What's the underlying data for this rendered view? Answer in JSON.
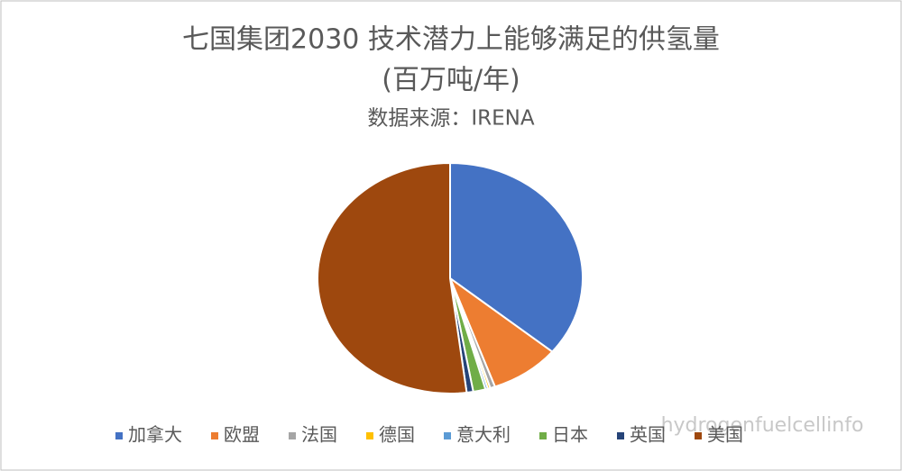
{
  "chart_data": {
    "type": "pie",
    "title": [
      "七国集团2030 技术潜力上能够满足的供氢量",
      "(百万吨/年)"
    ],
    "subtitle": "数据来源：IRENA",
    "categories": [
      "加拿大",
      "欧盟",
      "法国",
      "德国",
      "意大利",
      "日本",
      "英国",
      "美国"
    ],
    "values": [
      36,
      8.5,
      0.6,
      0.3,
      0.3,
      1.5,
      0.8,
      52
    ],
    "colors": [
      "#4472c4",
      "#ed7d31",
      "#a5a5a5",
      "#ffc000",
      "#5b9bd5",
      "#70ad47",
      "#264478",
      "#9e480e"
    ],
    "legend": "bottom"
  },
  "watermark": "hydrogenfuelcellinfo"
}
